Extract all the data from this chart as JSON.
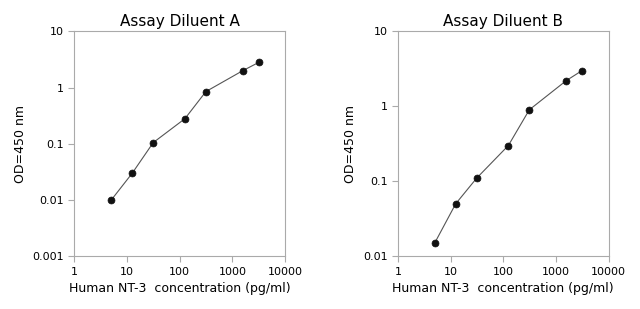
{
  "chart_a": {
    "title": "Assay Diluent A",
    "x": [
      5,
      12.5,
      31.25,
      125,
      312.5,
      1562.5,
      3125
    ],
    "y": [
      0.01,
      0.03,
      0.105,
      0.28,
      0.85,
      2.0,
      2.8
    ],
    "xlim": [
      1,
      10000
    ],
    "ylim": [
      0.001,
      10
    ],
    "yticks": [
      0.001,
      0.01,
      0.1,
      1,
      10
    ],
    "ytick_labels": [
      "0.001",
      "0.01",
      "0.1",
      "1",
      "10"
    ],
    "xticks": [
      1,
      10,
      100,
      1000,
      10000
    ],
    "xtick_labels": [
      "1",
      "10",
      "100",
      "1000",
      "10000"
    ],
    "ylabel": "OD=450 nm",
    "xlabel": "Human NT-3  concentration (pg/ml)"
  },
  "chart_b": {
    "title": "Assay Diluent B",
    "x": [
      5,
      12.5,
      31.25,
      125,
      312.5,
      1562.5,
      3125
    ],
    "y": [
      0.015,
      0.05,
      0.11,
      0.3,
      0.9,
      2.2,
      3.0
    ],
    "xlim": [
      1,
      10000
    ],
    "ylim": [
      0.01,
      10
    ],
    "yticks": [
      0.01,
      0.1,
      1,
      10
    ],
    "ytick_labels": [
      "0.01",
      "0.1",
      "1",
      "10"
    ],
    "xticks": [
      1,
      10,
      100,
      1000,
      10000
    ],
    "xtick_labels": [
      "1",
      "10",
      "100",
      "1000",
      "10000"
    ],
    "ylabel": "OD=450 nm",
    "xlabel": "Human NT-3  concentration (pg/ml)"
  },
  "line_color": "#555555",
  "marker": "o",
  "marker_color": "#111111",
  "marker_size": 5,
  "bg_color": "#ffffff",
  "title_fontsize": 11,
  "label_fontsize": 9,
  "tick_fontsize": 8,
  "spine_color": "#aaaaaa"
}
